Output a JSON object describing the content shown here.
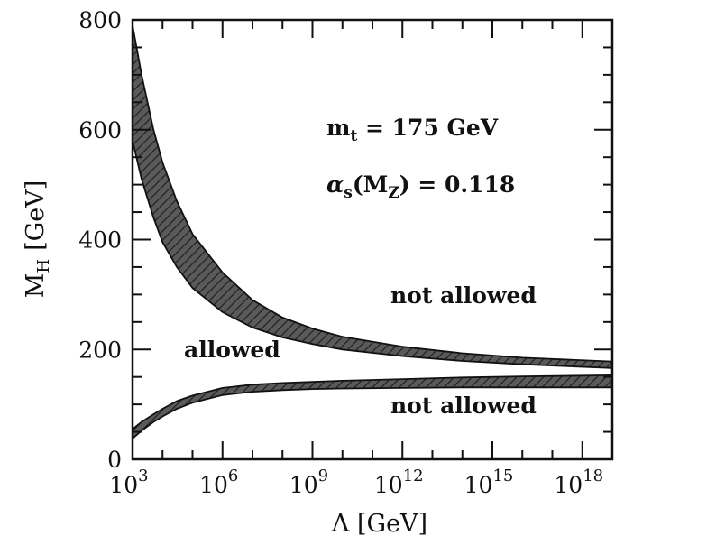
{
  "chart_data": {
    "type": "area",
    "xlabel": "Λ [GeV]",
    "ylabel": {
      "symbol": "M",
      "sub": "H",
      "unit": "[GeV]"
    },
    "xscale": "log",
    "x_ticks": [
      {
        "base": "10",
        "exp": "3"
      },
      {
        "base": "10",
        "exp": "6"
      },
      {
        "base": "10",
        "exp": "9"
      },
      {
        "base": "10",
        "exp": "12"
      },
      {
        "base": "10",
        "exp": "15"
      },
      {
        "base": "10",
        "exp": "18"
      }
    ],
    "y_ticks": [
      "0",
      "200",
      "400",
      "600",
      "800"
    ],
    "xlim": [
      1000.0,
      1e+19
    ],
    "ylim": [
      0,
      800
    ],
    "grid": false,
    "annotations": {
      "mt": {
        "sym": "m",
        "sub": "t",
        "rest": " = 175 GeV"
      },
      "alpha": {
        "sym": "α",
        "sub": "s",
        "arg_open": "(M",
        "arg_sub": "Z",
        "rest": ") = 0.118"
      },
      "not_allowed_upper": "not allowed",
      "allowed": "allowed",
      "not_allowed_lower": "not allowed"
    },
    "series": [
      {
        "x": [
          1000.0,
          2000.0,
          5000.0,
          10000.0,
          30000.0,
          100000.0,
          1000000.0,
          10000000.0,
          100000000.0,
          1000000000.0,
          10000000000.0,
          1000000000000.0,
          100000000000000.0,
          1e+16,
          1e+19
        ],
        "y_low": [
          580,
          510,
          440,
          395,
          350,
          312,
          268,
          240,
          222,
          210,
          200,
          188,
          179,
          173,
          166
        ],
        "y_high": [
          790,
          700,
          600,
          540,
          470,
          410,
          340,
          290,
          258,
          238,
          223,
          205,
          193,
          185,
          178
        ]
      },
      {
        "x": [
          1000.0,
          2000.0,
          5000.0,
          10000.0,
          30000.0,
          100000.0,
          1000000.0,
          10000000.0,
          100000000.0,
          1000000000.0,
          10000000000.0,
          1000000000000.0,
          100000000000000.0,
          1e+16,
          1e+19
        ],
        "y_low": [
          38,
          52,
          68,
          78,
          92,
          103,
          117,
          123,
          126,
          128,
          129,
          130,
          131,
          131,
          131
        ],
        "y_high": [
          55,
          68,
          82,
          92,
          106,
          116,
          130,
          136,
          139,
          141,
          143,
          146,
          149,
          151,
          153
        ]
      }
    ]
  }
}
